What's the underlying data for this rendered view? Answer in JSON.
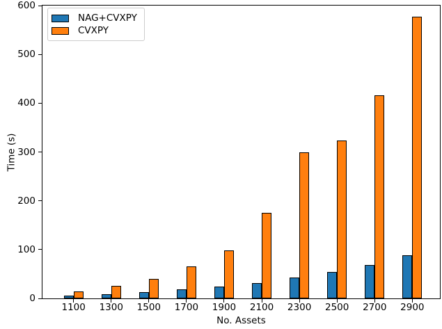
{
  "chart_data": {
    "type": "bar",
    "title": "",
    "xlabel": "No. Assets",
    "ylabel": "Time (s)",
    "categories": [
      "1100",
      "1300",
      "1500",
      "1700",
      "1900",
      "2100",
      "2300",
      "2500",
      "2700",
      "2900"
    ],
    "series": [
      {
        "name": "NAG+CVXPY",
        "color": "#1f77b4",
        "values": [
          6,
          8,
          13,
          18,
          24,
          31,
          43,
          54,
          69,
          88
        ]
      },
      {
        "name": "CVXPY",
        "color": "#ff7f0e",
        "values": [
          14,
          25,
          40,
          66,
          98,
          175,
          299,
          323,
          416,
          577
        ]
      }
    ],
    "ylim": [
      0,
      600
    ],
    "yticks": [
      0,
      100,
      200,
      300,
      400,
      500,
      600
    ],
    "grid": false,
    "legend_position": "upper left",
    "bar_edge_color": "#000000",
    "background_color": "#ffffff",
    "spine_color": "#000000"
  }
}
